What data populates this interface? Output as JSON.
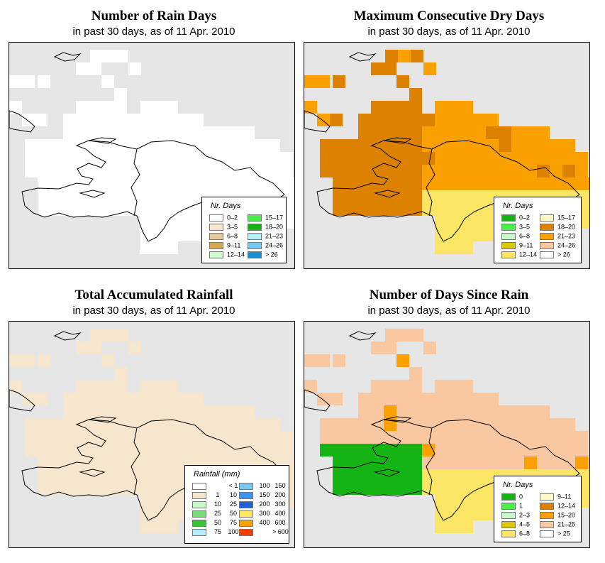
{
  "panels": [
    {
      "title": "Number of Rain Days",
      "subtitle": "in past 30 days, as of  11 Apr. 2010",
      "legend": {
        "title": "Nr. Days",
        "items": [
          {
            "label": "0–2",
            "color": "#ffffff"
          },
          {
            "label": "3–5",
            "color": "#f5e6cd"
          },
          {
            "label": "6–8",
            "color": "#e3c99b"
          },
          {
            "label": "9–11",
            "color": "#d2aa55"
          },
          {
            "label": "12–14",
            "color": "#d2fad2"
          },
          {
            "label": "15–17",
            "color": "#46f046"
          },
          {
            "label": "18–20",
            "color": "#14b414"
          },
          {
            "label": "21–23",
            "color": "#b4f0fa"
          },
          {
            "label": "24–26",
            "color": "#78c8f0"
          },
          {
            "label": "> 26",
            "color": "#1e8cd2"
          }
        ]
      }
    },
    {
      "title": "Maximum Consecutive Dry Days",
      "subtitle": "in past 30 days, as of  11 Apr. 2010",
      "legend": {
        "title": "Nr. Days",
        "items": [
          {
            "label": "0–2",
            "color": "#14b414"
          },
          {
            "label": "3–5",
            "color": "#46f046"
          },
          {
            "label": "6–8",
            "color": "#c8fac8"
          },
          {
            "label": "9–11",
            "color": "#dcc800"
          },
          {
            "label": "12–14",
            "color": "#fae664"
          },
          {
            "label": "15–17",
            "color": "#fffac8"
          },
          {
            "label": "18–20",
            "color": "#dc8200"
          },
          {
            "label": "21–23",
            "color": "#faa000"
          },
          {
            "label": "24–26",
            "color": "#fac8a0"
          },
          {
            "label": "> 26",
            "color": "#ffffff"
          }
        ]
      }
    },
    {
      "title": "Total Accumulated Rainfall",
      "subtitle": "in past 30 days, as of  11 Apr. 2010",
      "legend": {
        "title": "Rainfall (mm)",
        "items": [
          {
            "lo": "",
            "hi": "< 1",
            "color": "#ffffff"
          },
          {
            "lo": "1",
            "hi": "10",
            "color": "#f5e6cd"
          },
          {
            "lo": "10",
            "hi": "25",
            "color": "#c8fac8"
          },
          {
            "lo": "25",
            "hi": "50",
            "color": "#78dc78"
          },
          {
            "lo": "50",
            "hi": "75",
            "color": "#32c832"
          },
          {
            "lo": "75",
            "hi": "100",
            "color": "#b4f0fa"
          },
          {
            "lo": "100",
            "hi": "150",
            "color": "#78c8f0"
          },
          {
            "lo": "150",
            "hi": "200",
            "color": "#3c96f0"
          },
          {
            "lo": "200",
            "hi": "300",
            "color": "#1e64d2"
          },
          {
            "lo": "300",
            "hi": "400",
            "color": "#fae664"
          },
          {
            "lo": "400",
            "hi": "600",
            "color": "#faa000"
          },
          {
            "lo": "",
            "hi": "> 600",
            "color": "#fa3c00"
          }
        ]
      }
    },
    {
      "title": "Number of Days Since Rain",
      "subtitle": "in past 30 days, as of  11 Apr. 2010",
      "legend": {
        "title": "Nr. Days",
        "items": [
          {
            "label": "0",
            "color": "#14b414"
          },
          {
            "label": "1",
            "color": "#46f046"
          },
          {
            "label": "2–3",
            "color": "#c8fac8"
          },
          {
            "label": "4–5",
            "color": "#dcc800"
          },
          {
            "label": "6–8",
            "color": "#fae664"
          },
          {
            "label": "9–11",
            "color": "#fffac8"
          },
          {
            "label": "12–14",
            "color": "#dc8200"
          },
          {
            "label": "15–20",
            "color": "#faa000"
          },
          {
            "label": "21–25",
            "color": "#fac8a0"
          },
          {
            "label": "> 25",
            "color": "#ffffff"
          }
        ]
      }
    }
  ]
}
